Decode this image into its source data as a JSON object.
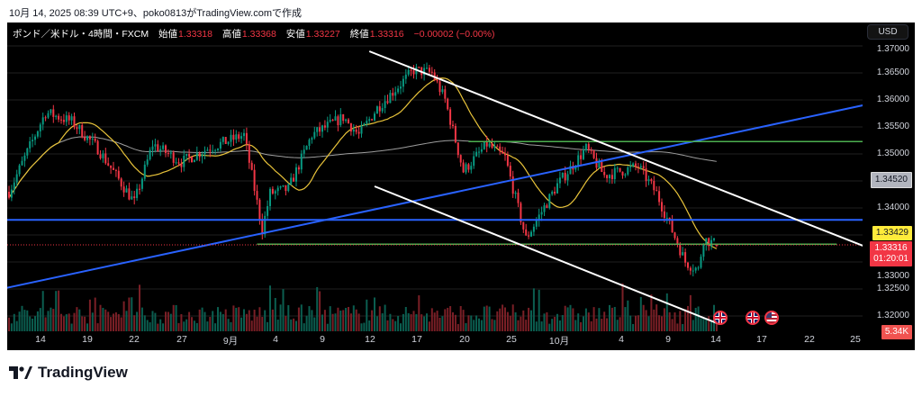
{
  "caption": "10月 14, 2025 08:39 UTC+9、poko0813がTradingView.comで作成",
  "legend": {
    "symbol": "ポンド／米ドル・4時間・FXCM",
    "open_label": "始値",
    "open": "1.33318",
    "high_label": "高値",
    "high": "1.33368",
    "low_label": "安値",
    "low": "1.33227",
    "close_label": "終値",
    "close": "1.33316",
    "change": "−0.00002 (−0.00%)"
  },
  "currency_button": "USD",
  "price_ticks": [
    "1.37000",
    "1.36500",
    "1.36000",
    "1.35500",
    "1.35000",
    "1.34000",
    "1.33000",
    "1.32500",
    "1.32000"
  ],
  "badges": {
    "ma200": "1.34520",
    "ma20": "1.33429",
    "last_price": "1.33316",
    "countdown": "01:20:01",
    "volume": "5.34K"
  },
  "time_labels": [
    "14",
    "19",
    "22",
    "27",
    "9月",
    "4",
    "9",
    "12",
    "17",
    "20",
    "25",
    "10月",
    "4",
    "9",
    "14",
    "17",
    "22",
    "25"
  ],
  "event_flags": [
    "uk",
    "uk",
    "us"
  ],
  "brand": "TradingView",
  "colors": {
    "up": "#089981",
    "down": "#f23645",
    "ma20": "#e8c33a",
    "ma200": "#9e9e9e",
    "trend": "#ffffff",
    "channel": "#2962ff",
    "level": "#4caf50"
  },
  "chart_data": {
    "type": "candlestick",
    "title": "ポンド／米ドル・4時間・FXCM",
    "ylim": [
      1.3175,
      1.3705
    ],
    "approx_close_path": [
      [
        0,
        1.343
      ],
      [
        14,
        1.3577
      ],
      [
        24,
        1.356
      ],
      [
        34,
        1.351
      ],
      [
        48,
        1.341
      ],
      [
        55,
        1.3518
      ],
      [
        66,
        1.3485
      ],
      [
        76,
        1.351
      ],
      [
        90,
        1.3535
      ],
      [
        97,
        1.336
      ],
      [
        100,
        1.3427
      ],
      [
        107,
        1.3435
      ],
      [
        116,
        1.3535
      ],
      [
        128,
        1.3568
      ],
      [
        134,
        1.3535
      ],
      [
        141,
        1.3585
      ],
      [
        155,
        1.3655
      ],
      [
        162,
        1.365
      ],
      [
        167,
        1.36
      ],
      [
        174,
        1.3468
      ],
      [
        183,
        1.3518
      ],
      [
        190,
        1.3493
      ],
      [
        198,
        1.3343
      ],
      [
        203,
        1.3385
      ],
      [
        210,
        1.3443
      ],
      [
        221,
        1.351
      ],
      [
        228,
        1.346
      ],
      [
        241,
        1.3477
      ],
      [
        248,
        1.3427
      ],
      [
        259,
        1.33
      ],
      [
        264,
        1.3285
      ],
      [
        266,
        1.3343
      ],
      [
        271,
        1.3332
      ]
    ],
    "drawings": {
      "channel_upper": [
        [
          138,
          1.369
        ],
        [
          327,
          1.333
        ]
      ],
      "channel_lower": [
        [
          140,
          1.344
        ],
        [
          272,
          1.3185
        ]
      ],
      "rising_trend": [
        [
          -1,
          1.3252
        ],
        [
          327,
          1.359
        ]
      ],
      "horizontal_support": 1.3378,
      "green_resistance": {
        "price": 1.3523,
        "from": 176,
        "to": 327
      },
      "green_support": {
        "price": 1.3333,
        "from": 95,
        "to": 317
      }
    },
    "indicators": [
      "MA 20",
      "MA 200",
      "Volume"
    ]
  }
}
